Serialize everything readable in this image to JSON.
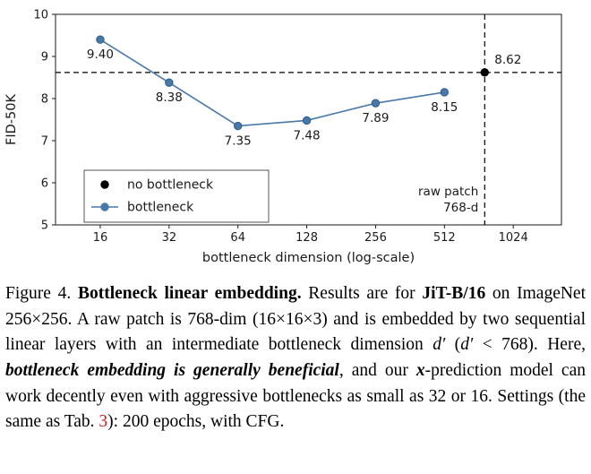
{
  "chart_data": {
    "type": "line",
    "title": "",
    "xlabel": "bottleneck dimension (log-scale)",
    "ylabel": "FID-50K",
    "x_scale": "log2",
    "xlim_log2": [
      3.35,
      10.7
    ],
    "ylim": [
      5,
      10
    ],
    "x_ticks": [
      16,
      32,
      64,
      128,
      256,
      512,
      1024
    ],
    "y_ticks": [
      5,
      6,
      7,
      8,
      9,
      10
    ],
    "grid": false,
    "series": [
      {
        "name": "bottleneck",
        "type": "line",
        "color": "#4878a8",
        "marker_edge": "#2b5c87",
        "x": [
          16,
          32,
          64,
          128,
          256,
          512
        ],
        "y": [
          9.4,
          8.38,
          7.35,
          7.48,
          7.89,
          8.15
        ],
        "point_labels": [
          "9.40",
          "8.38",
          "7.35",
          "7.48",
          "7.89",
          "8.15"
        ],
        "label_offset": [
          0,
          21
        ],
        "label_anchor": "middle"
      },
      {
        "name": "no bottleneck",
        "type": "scatter",
        "color": "#000000",
        "marker_edge": "#000000",
        "x": [
          768
        ],
        "y": [
          8.62
        ],
        "point_labels": [
          "8.62"
        ],
        "label_offset": [
          11,
          -10
        ],
        "label_anchor": "start"
      }
    ],
    "annotations": {
      "hline_y": 8.62,
      "vline_x": 768,
      "vline_label_lines": [
        "raw patch",
        "768-d"
      ]
    },
    "legend": {
      "position": "lower-left",
      "items": [
        {
          "label": "no bottleneck",
          "marker": "dot",
          "color": "#000000"
        },
        {
          "label": "bottleneck",
          "marker": "line-dot",
          "color": "#4878a8"
        }
      ]
    }
  },
  "caption": {
    "segments": [
      {
        "text": "Figure 4. ",
        "style": "normal"
      },
      {
        "text": "Bottleneck linear embedding.",
        "style": "bold"
      },
      {
        "text": " Results are for ",
        "style": "normal"
      },
      {
        "text": "JiT-B/16",
        "style": "bold"
      },
      {
        "text": " on ImageNet 256×256. A raw patch is 768-dim (16×16×3) and is embedded by two sequential linear layers with an intermediate bottleneck dimension ",
        "style": "normal"
      },
      {
        "text": "d′",
        "style": "italic"
      },
      {
        "text": " (",
        "style": "normal"
      },
      {
        "text": "d′",
        "style": "italic"
      },
      {
        "text": " < 768). Here, ",
        "style": "normal"
      },
      {
        "text": "bottleneck embedding is generally beneficial",
        "style": "bold-italic"
      },
      {
        "text": ", and our ",
        "style": "normal"
      },
      {
        "text": "x",
        "style": "bold-italic"
      },
      {
        "text": "-prediction model can work decently even with aggressive bottlenecks as small as 32 or 16. Settings (the same as Tab. ",
        "style": "normal"
      },
      {
        "text": "3",
        "style": "red"
      },
      {
        "text": "): 200 epochs, with CFG.",
        "style": "normal"
      }
    ]
  }
}
